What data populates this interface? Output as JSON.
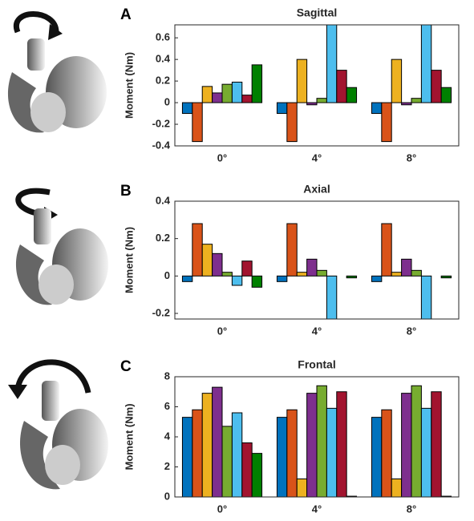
{
  "chart_data": [
    {
      "type": "bar",
      "label": "A",
      "title": "Sagittal",
      "y_label": "Moment (Nm)",
      "categories": [
        "0°",
        "4°",
        "8°"
      ],
      "series": [
        {
          "color": "#0072BD",
          "values": [
            -0.1,
            -0.1,
            -0.1
          ]
        },
        {
          "color": "#D95319",
          "values": [
            -0.36,
            -0.36,
            -0.36
          ]
        },
        {
          "color": "#EDB120",
          "values": [
            0.15,
            0.4,
            0.4
          ]
        },
        {
          "color": "#7E2F8E",
          "values": [
            0.09,
            -0.02,
            -0.02
          ]
        },
        {
          "color": "#77AC30",
          "values": [
            0.17,
            0.04,
            0.04
          ]
        },
        {
          "color": "#4DBEEE",
          "values": [
            0.19,
            0.72,
            0.72
          ]
        },
        {
          "color": "#A2142F",
          "values": [
            0.07,
            0.3,
            0.3
          ]
        },
        {
          "color": "#008000",
          "values": [
            0.35,
            0.14,
            0.14
          ]
        }
      ],
      "ylim": [
        -0.4,
        0.72
      ],
      "yticks": [
        -0.4,
        -0.2,
        0,
        0.2,
        0.4,
        0.6
      ]
    },
    {
      "type": "bar",
      "label": "B",
      "title": "Axial",
      "y_label": "Moment (Nm)",
      "categories": [
        "0°",
        "4°",
        "8°"
      ],
      "series": [
        {
          "color": "#0072BD",
          "values": [
            -0.03,
            -0.03,
            -0.03
          ]
        },
        {
          "color": "#D95319",
          "values": [
            0.28,
            0.28,
            0.28
          ]
        },
        {
          "color": "#EDB120",
          "values": [
            0.17,
            0.02,
            0.02
          ]
        },
        {
          "color": "#7E2F8E",
          "values": [
            0.12,
            0.09,
            0.09
          ]
        },
        {
          "color": "#77AC30",
          "values": [
            0.02,
            0.03,
            0.03
          ]
        },
        {
          "color": "#4DBEEE",
          "values": [
            -0.05,
            -0.23,
            -0.23
          ]
        },
        {
          "color": "#A2142F",
          "values": [
            0.08,
            0,
            0
          ]
        },
        {
          "color": "#008000",
          "values": [
            -0.06,
            -0.01,
            -0.01
          ]
        }
      ],
      "ylim": [
        -0.23,
        0.4
      ],
      "yticks": [
        -0.2,
        0,
        0.2,
        0.4
      ]
    },
    {
      "type": "bar",
      "label": "C",
      "title": "Frontal",
      "y_label": "Moment (Nm)",
      "categories": [
        "0°",
        "4°",
        "8°"
      ],
      "series": [
        {
          "color": "#0072BD",
          "values": [
            5.3,
            5.3,
            5.3
          ]
        },
        {
          "color": "#D95319",
          "values": [
            5.8,
            5.8,
            5.8
          ]
        },
        {
          "color": "#EDB120",
          "values": [
            6.9,
            1.2,
            1.2
          ]
        },
        {
          "color": "#7E2F8E",
          "values": [
            7.3,
            6.9,
            6.9
          ]
        },
        {
          "color": "#77AC30",
          "values": [
            4.7,
            7.4,
            7.4
          ]
        },
        {
          "color": "#4DBEEE",
          "values": [
            5.6,
            5.9,
            5.9
          ]
        },
        {
          "color": "#A2142F",
          "values": [
            3.6,
            7.0,
            7.0
          ]
        },
        {
          "color": "#008000",
          "values": [
            2.9,
            0.05,
            0.05
          ]
        }
      ],
      "ylim": [
        0,
        8
      ],
      "yticks": [
        0,
        2,
        4,
        6,
        8
      ]
    }
  ]
}
